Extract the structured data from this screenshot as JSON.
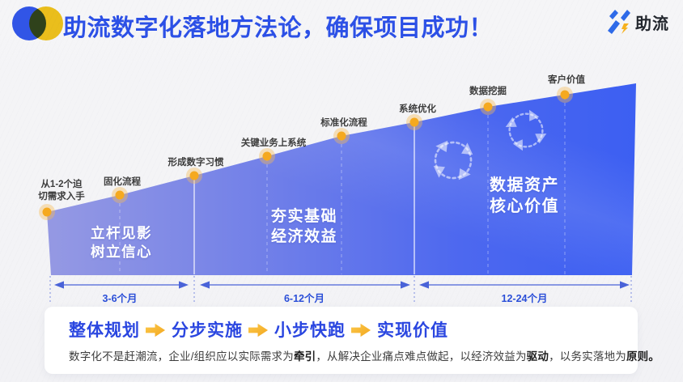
{
  "slide": {
    "title": "助流数字化落地方法论，确保项目成功！",
    "brand_name": "助流"
  },
  "diagram": {
    "milestones": [
      {
        "label": "从1-2个迫\n切需求入手"
      },
      {
        "label": "固化流程"
      },
      {
        "label": "形成数字习惯"
      },
      {
        "label": "关键业务上系统"
      },
      {
        "label": "标准化流程"
      },
      {
        "label": "系统优化"
      },
      {
        "label": "数据挖掘"
      },
      {
        "label": "客户价值"
      }
    ],
    "phases": [
      {
        "title": "立杆见影\n树立信心",
        "duration": "3-6个月"
      },
      {
        "title": "夯实基础\n经济效益",
        "duration": "6-12个月"
      },
      {
        "title": "数据资产\n核心价值",
        "duration": "12-24个月"
      }
    ]
  },
  "summary": {
    "flow": [
      "整体规划",
      "分步实施",
      "小步快跑",
      "实现价值"
    ],
    "description_segments": [
      {
        "text": "数字化不是赶潮流，企业/组织应以实际需求为",
        "bold": false
      },
      {
        "text": "牵引",
        "bold": true
      },
      {
        "text": "，从解决企业痛点难点做起，以经济效益为",
        "bold": false
      },
      {
        "text": "驱动",
        "bold": true
      },
      {
        "text": "，以务实落地为",
        "bold": false
      },
      {
        "text": "原则",
        "bold": true
      },
      {
        "text": "。",
        "bold": true
      }
    ]
  },
  "colors": {
    "accent_blue": "#2c50e6",
    "ramp_gradient_left": "#9599e3",
    "ramp_gradient_right": "#3c5ff2",
    "milestone_dot": "#f5a91f",
    "flow_arrow_yellow": "#f7b733",
    "background": "#f4f4f6"
  }
}
